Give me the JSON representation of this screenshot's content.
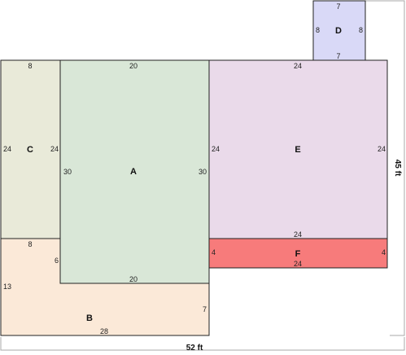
{
  "plan": {
    "total_width_label": "52 ft",
    "total_height_label": "45 ft",
    "rooms": [
      {
        "label": "A",
        "color": "#d9e7d7",
        "dims": [
          "20",
          "30",
          "30",
          "20"
        ]
      },
      {
        "label": "B",
        "color": "#fbe9d8",
        "dims": [
          "8",
          "6",
          "13",
          "7",
          "28"
        ]
      },
      {
        "label": "C",
        "color": "#e9ead9",
        "dims": [
          "8",
          "24",
          "24"
        ]
      },
      {
        "label": "D",
        "color": "#d9d9f7",
        "dims": [
          "7",
          "8",
          "8",
          "7"
        ]
      },
      {
        "label": "E",
        "color": "#eadaea",
        "dims": [
          "24",
          "24",
          "24",
          "24"
        ]
      },
      {
        "label": "F",
        "color": "#f77b7b",
        "dims": [
          "4",
          "4",
          "24"
        ]
      }
    ]
  }
}
